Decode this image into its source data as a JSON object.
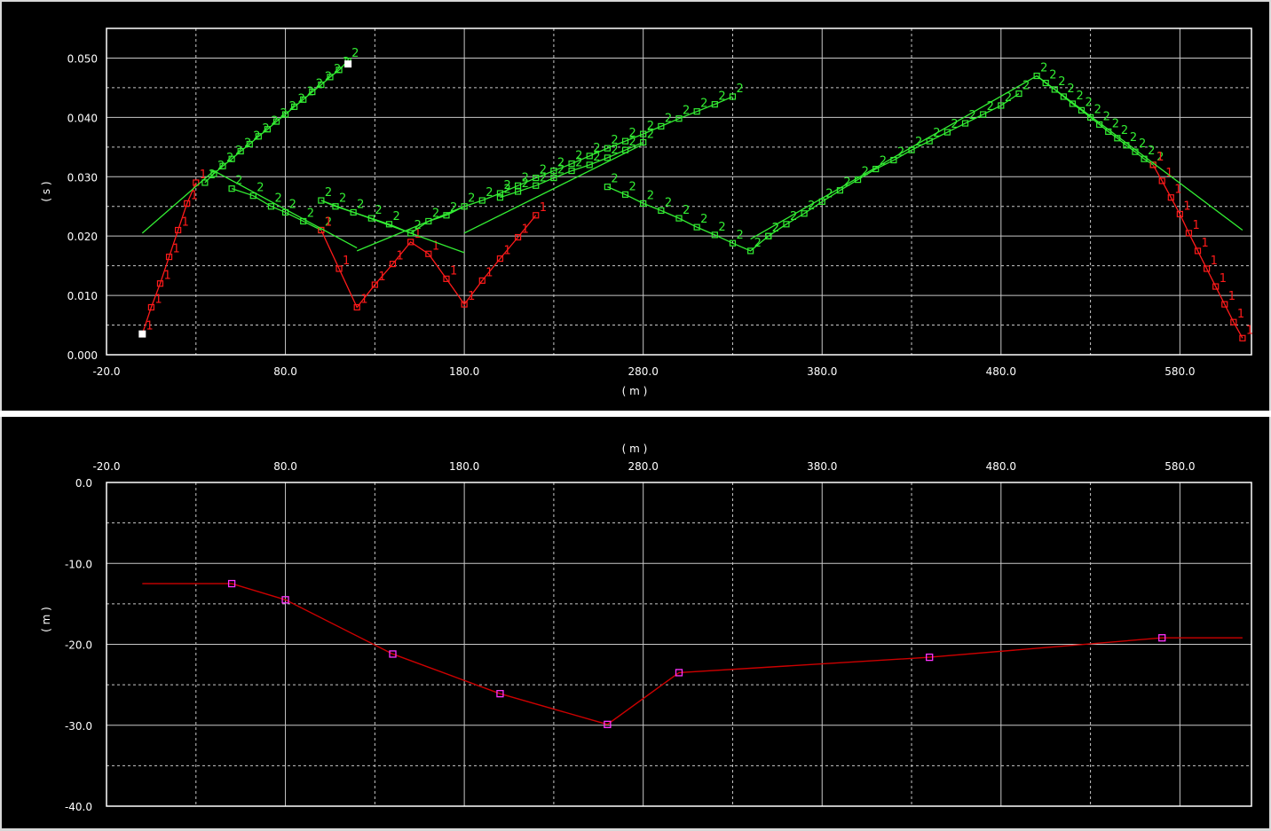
{
  "chart_data": [
    {
      "type": "scatter",
      "title": "",
      "xlabel": "( m )",
      "ylabel": "( s )",
      "xlim": [
        -20,
        620
      ],
      "ylim": [
        0,
        0.055
      ],
      "x_ticks": [
        -20,
        80,
        180,
        280,
        380,
        480,
        580
      ],
      "x_tick_labels": [
        "-20.0",
        "80.0",
        "180.0",
        "280.0",
        "380.0",
        "480.0",
        "580.0"
      ],
      "y_ticks": [
        0,
        0.01,
        0.02,
        0.03,
        0.04,
        0.05
      ],
      "y_tick_labels": [
        "0.000",
        "0.010",
        "0.020",
        "0.030",
        "0.040",
        "0.050"
      ],
      "grid": true,
      "colors": {
        "layer1": "#ff1a1a",
        "layer2": "#33ee33",
        "source": "#ffffff",
        "grid_solid": "#c8c8c8",
        "grid_dashed": "#c8c8c8"
      },
      "series": [
        {
          "label_char": "1",
          "color": "#ff1a1a",
          "marked": true,
          "x": [
            0,
            5,
            10,
            15,
            20,
            25,
            30
          ],
          "y": [
            0.0035,
            0.008,
            0.012,
            0.0165,
            0.021,
            0.0255,
            0.029
          ]
        },
        {
          "label_char": "2",
          "color": "#33ee33",
          "marked": true,
          "x": [
            35,
            40,
            45,
            50,
            55,
            60,
            65,
            70,
            75,
            80,
            85,
            90,
            95,
            100,
            105,
            110,
            115
          ],
          "y": [
            0.029,
            0.0305,
            0.0318,
            0.033,
            0.0343,
            0.0355,
            0.0368,
            0.038,
            0.0393,
            0.0405,
            0.0418,
            0.043,
            0.0443,
            0.0455,
            0.0468,
            0.048,
            0.0495
          ]
        },
        {
          "label_char": "2",
          "color": "#33ee33",
          "marked": true,
          "x": [
            50,
            62,
            72,
            80,
            90,
            100
          ],
          "y": [
            0.028,
            0.0268,
            0.025,
            0.024,
            0.0225,
            0.021
          ]
        },
        {
          "label_char": "1",
          "color": "#ff1a1a",
          "marked": true,
          "x": [
            100,
            110,
            120,
            130,
            140,
            150,
            160,
            170,
            180,
            190,
            200,
            210,
            220
          ],
          "y": [
            0.021,
            0.0145,
            0.008,
            0.0118,
            0.0153,
            0.019,
            0.017,
            0.0128,
            0.0085,
            0.0125,
            0.0162,
            0.0198,
            0.0235
          ]
        },
        {
          "label_char": "2",
          "color": "#33ee33",
          "marked": true,
          "x": [
            100,
            108,
            118,
            128,
            138,
            150,
            160,
            170,
            180,
            190,
            200,
            210,
            220,
            230,
            240,
            250,
            260,
            270,
            280,
            290,
            300,
            310,
            320,
            330
          ],
          "y": [
            0.026,
            0.025,
            0.024,
            0.023,
            0.022,
            0.0205,
            0.0225,
            0.0235,
            0.025,
            0.026,
            0.0272,
            0.0285,
            0.0298,
            0.031,
            0.0322,
            0.0335,
            0.0348,
            0.036,
            0.0372,
            0.0385,
            0.0398,
            0.041,
            0.0422,
            0.0435
          ]
        },
        {
          "label_char": "2",
          "color": "#33ee33",
          "marked": true,
          "x": [
            200,
            210,
            220,
            230,
            240,
            250,
            260,
            270,
            280
          ],
          "y": [
            0.0265,
            0.0275,
            0.0285,
            0.0298,
            0.031,
            0.032,
            0.0332,
            0.0345,
            0.0358
          ]
        },
        {
          "label_char": "2",
          "color": "#33ee33",
          "marked": true,
          "x": [
            260,
            270,
            280,
            290,
            300,
            310,
            320,
            330,
            340,
            350
          ],
          "y": [
            0.0283,
            0.027,
            0.0255,
            0.0243,
            0.023,
            0.0215,
            0.0202,
            0.0188,
            0.0175,
            0.02
          ]
        },
        {
          "label_char": "2",
          "color": "#33ee33",
          "marked": true,
          "x": [
            350,
            360,
            370,
            380,
            390,
            400,
            410,
            420,
            430,
            440,
            450,
            460,
            470,
            480,
            490
          ],
          "y": [
            0.02,
            0.022,
            0.0238,
            0.0258,
            0.0277,
            0.0295,
            0.0313,
            0.0328,
            0.0345,
            0.036,
            0.0375,
            0.039,
            0.0405,
            0.042,
            0.044
          ]
        },
        {
          "label_char": "2",
          "color": "#33ee33",
          "marked": true,
          "x": [
            500,
            505,
            510,
            515,
            520,
            525,
            530,
            535,
            540,
            545,
            550,
            555,
            560,
            565
          ],
          "y": [
            0.047,
            0.0458,
            0.0447,
            0.0435,
            0.0423,
            0.0412,
            0.04,
            0.0388,
            0.0376,
            0.0365,
            0.0353,
            0.0342,
            0.033,
            0.032
          ]
        },
        {
          "label_char": "1",
          "color": "#ff1a1a",
          "marked": true,
          "x": [
            565,
            570,
            575,
            580,
            585,
            590,
            595,
            600,
            605,
            610,
            615
          ],
          "y": [
            0.032,
            0.0293,
            0.0265,
            0.0237,
            0.0205,
            0.0175,
            0.0145,
            0.0115,
            0.0085,
            0.0055,
            0.0028
          ]
        },
        {
          "label_char": "",
          "color": "#33ee33",
          "marked": false,
          "x": [
            0,
            40
          ],
          "y": [
            0.0205,
            0.031
          ]
        },
        {
          "label_char": "",
          "color": "#33ee33",
          "marked": false,
          "x": [
            40,
            120
          ],
          "y": [
            0.031,
            0.018
          ]
        },
        {
          "label_char": "",
          "color": "#33ee33",
          "marked": false,
          "x": [
            120,
            180
          ],
          "y": [
            0.0175,
            0.025
          ]
        },
        {
          "label_char": "",
          "color": "#33ee33",
          "marked": false,
          "x": [
            100,
            180
          ],
          "y": [
            0.026,
            0.0172
          ]
        },
        {
          "label_char": "",
          "color": "#33ee33",
          "marked": false,
          "x": [
            180,
            280
          ],
          "y": [
            0.0205,
            0.0355
          ]
        },
        {
          "label_char": "",
          "color": "#33ee33",
          "marked": false,
          "x": [
            340,
            500
          ],
          "y": [
            0.0195,
            0.047
          ]
        },
        {
          "label_char": "",
          "color": "#33ee33",
          "marked": false,
          "x": [
            500,
            615
          ],
          "y": [
            0.047,
            0.021
          ]
        }
      ],
      "sources": [
        {
          "x": 0,
          "y": 0.0035
        },
        {
          "x": 115,
          "y": 0.049
        }
      ]
    },
    {
      "type": "line",
      "title": "",
      "xlabel": "( m )",
      "ylabel": "( m )",
      "xlim": [
        -20,
        620
      ],
      "ylim": [
        -40,
        0
      ],
      "x_ticks": [
        -20,
        80,
        180,
        280,
        380,
        480,
        580
      ],
      "x_tick_labels": [
        "-20.0",
        "80.0",
        "180.0",
        "280.0",
        "380.0",
        "480.0",
        "580.0"
      ],
      "y_ticks": [
        0,
        -10,
        -20,
        -30,
        -40
      ],
      "y_tick_labels": [
        "0.0",
        "-10.0",
        "-20.0",
        "-30.0",
        "-40.0"
      ],
      "grid": true,
      "colors": {
        "line": "#cc0000",
        "marker": "#ff33ff"
      },
      "series": [
        {
          "color": "#cc0000",
          "x": [
            0,
            50,
            80,
            140,
            200,
            260,
            300,
            440,
            570,
            615
          ],
          "y": [
            -12.5,
            -12.5,
            -14.5,
            -21.2,
            -26.1,
            -29.9,
            -23.5,
            -21.6,
            -19.2,
            -19.2
          ]
        }
      ],
      "markers": {
        "color": "#ff33ff",
        "x": [
          50,
          80,
          140,
          200,
          260,
          300,
          440,
          570
        ],
        "y": [
          -12.5,
          -14.5,
          -21.2,
          -26.1,
          -29.9,
          -23.5,
          -21.6,
          -19.2
        ]
      }
    }
  ]
}
